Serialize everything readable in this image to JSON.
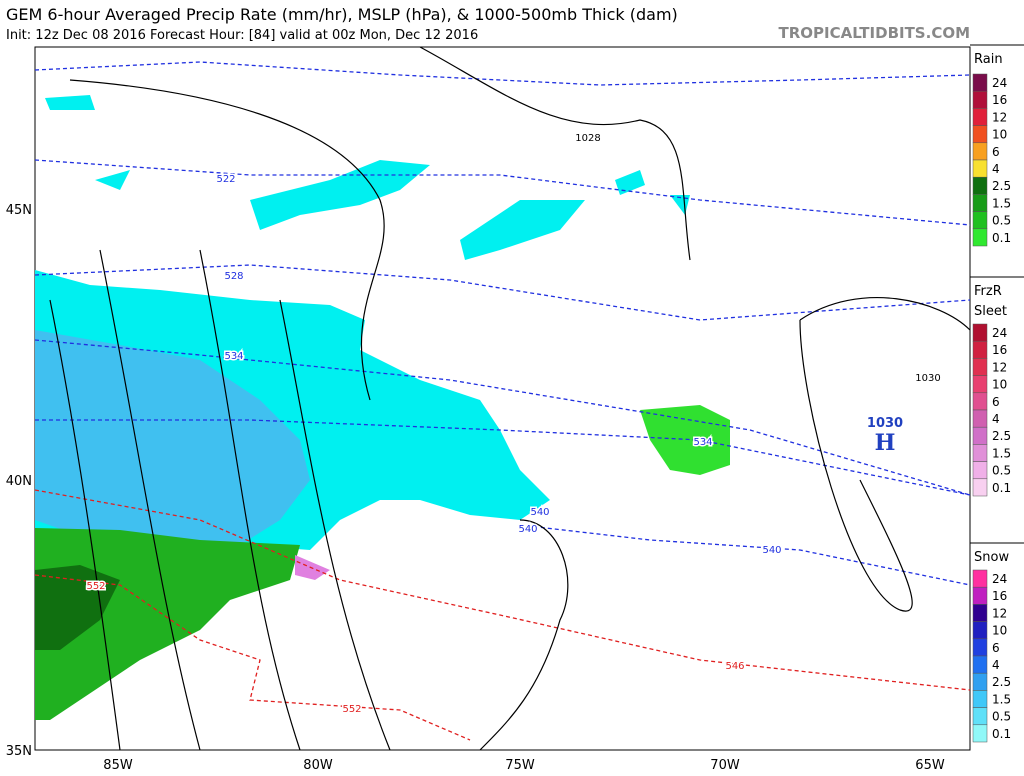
{
  "header": {
    "title": "GEM 6-hour Averaged Precip Rate (mm/hr), MSLP (hPa), & 1000-500mb Thick (dam)",
    "subtitle": "Init: 12z Dec 08 2016   Forecast Hour: [84]   valid at 00z Mon, Dec 12 2016",
    "site": "TROPICALTIDBITS.COM"
  },
  "map": {
    "lat_labels": [
      "45N",
      "40N",
      "35N"
    ],
    "lon_labels": [
      "85W",
      "80W",
      "75W",
      "70W",
      "65W"
    ],
    "contour_labels": [
      "1028",
      "522",
      "528",
      "534",
      "534",
      "540",
      "540",
      "540",
      "552",
      "546",
      "552",
      "1030"
    ],
    "high": {
      "pressure": "1030",
      "symbol": "H"
    }
  },
  "legend": {
    "sections": [
      {
        "titles": [
          "Rain"
        ],
        "labels": [
          "24",
          "16",
          "12",
          "10",
          "6",
          "4",
          "2.5",
          "1.5",
          "0.5",
          "0.1"
        ],
        "colors": [
          "#7a0c4a",
          "#b0103a",
          "#e0203a",
          "#f05020",
          "#f8a020",
          "#f8e030",
          "#107010",
          "#189c18",
          "#20c020",
          "#30e830"
        ]
      },
      {
        "titles": [
          "FrzR",
          "Sleet"
        ],
        "labels": [
          "24",
          "16",
          "12",
          "10",
          "6",
          "4",
          "2.5",
          "1.5",
          "0.5",
          "0.1"
        ],
        "colors": [
          "#b01030",
          "#d02040",
          "#e03050",
          "#e84070",
          "#e05090",
          "#d060b0",
          "#d070c8",
          "#e090d8",
          "#f0b0e8",
          "#f8d0f0"
        ]
      },
      {
        "titles": [
          "Snow"
        ],
        "labels": [
          "24",
          "16",
          "12",
          "10",
          "6",
          "4",
          "2.5",
          "1.5",
          "0.5",
          "0.1"
        ],
        "colors": [
          "#ff30a0",
          "#c020c0",
          "#300090",
          "#2020c0",
          "#2040e0",
          "#2070f0",
          "#30a0f0",
          "#40c8f8",
          "#60e0f8",
          "#90f8f8"
        ]
      }
    ]
  }
}
